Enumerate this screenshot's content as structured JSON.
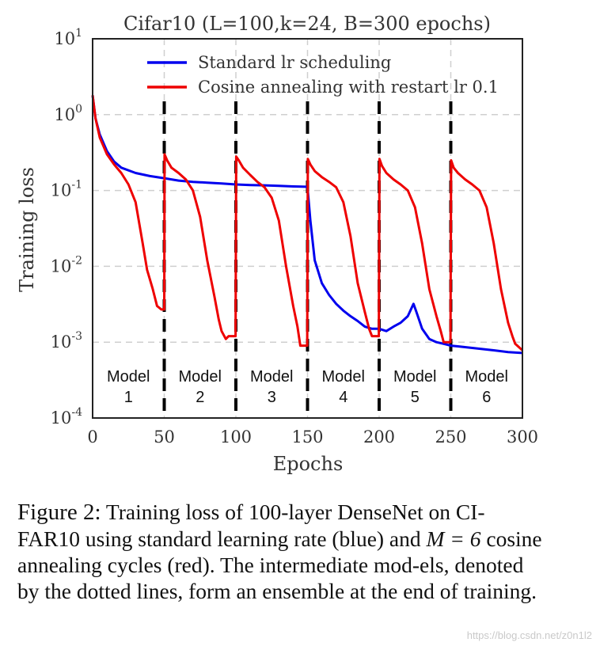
{
  "chart_data": {
    "type": "line",
    "title": "Cifar10 (L=100,k=24, B=300 epochs)",
    "xlabel": "Epochs",
    "ylabel": "Training loss",
    "xlim": [
      0,
      300
    ],
    "ylim_log10": [
      -4,
      1
    ],
    "yscale": "log",
    "x_ticks": [
      0,
      50,
      100,
      150,
      200,
      250,
      300
    ],
    "y_ticks": [
      {
        "base": "10",
        "exp": "-4"
      },
      {
        "base": "10",
        "exp": "-3"
      },
      {
        "base": "10",
        "exp": "-2"
      },
      {
        "base": "10",
        "exp": "-1"
      },
      {
        "base": "10",
        "exp": "0"
      },
      {
        "base": "10",
        "exp": "1"
      }
    ],
    "grid": true,
    "legend_position": "top",
    "series": [
      {
        "name": "Standard lr scheduling",
        "color": "#0000ee",
        "x": [
          0,
          2,
          5,
          10,
          15,
          20,
          30,
          40,
          50,
          60,
          70,
          80,
          90,
          100,
          110,
          120,
          130,
          140,
          149,
          150,
          152,
          155,
          160,
          165,
          170,
          175,
          180,
          185,
          190,
          195,
          200,
          205,
          210,
          215,
          220,
          224,
          226,
          230,
          235,
          240,
          245,
          250,
          255,
          260,
          270,
          280,
          290,
          300
        ],
        "y": [
          1.8,
          0.9,
          0.55,
          0.33,
          0.24,
          0.2,
          0.17,
          0.155,
          0.145,
          0.135,
          0.13,
          0.127,
          0.124,
          0.12,
          0.118,
          0.117,
          0.115,
          0.113,
          0.112,
          0.11,
          0.04,
          0.012,
          0.006,
          0.0042,
          0.0032,
          0.0026,
          0.0022,
          0.0019,
          0.0016,
          0.0015,
          0.0015,
          0.0014,
          0.0016,
          0.0018,
          0.0022,
          0.0032,
          0.0025,
          0.0015,
          0.0011,
          0.001,
          0.00095,
          0.0009,
          0.00088,
          0.00086,
          0.00082,
          0.00078,
          0.00074,
          0.00072
        ]
      },
      {
        "name": "Cosine annealing with restart lr 0.1",
        "color": "#ee0000",
        "x": [
          0,
          2,
          5,
          10,
          15,
          20,
          25,
          30,
          35,
          38,
          42,
          45,
          48,
          50,
          50.2,
          52,
          55,
          60,
          65,
          70,
          75,
          80,
          85,
          88,
          90,
          93,
          95,
          99.8,
          100.2,
          102,
          105,
          110,
          115,
          120,
          125,
          130,
          135,
          140,
          143,
          145,
          149.8,
          150.2,
          152,
          155,
          160,
          165,
          170,
          175,
          180,
          185,
          190,
          193,
          195,
          199.8,
          200.2,
          202,
          205,
          210,
          215,
          220,
          225,
          230,
          235,
          240,
          243,
          245,
          249.8,
          250.2,
          252,
          255,
          260,
          265,
          270,
          275,
          280,
          285,
          290,
          293,
          295,
          300
        ],
        "y": [
          1.8,
          0.9,
          0.5,
          0.3,
          0.22,
          0.17,
          0.12,
          0.07,
          0.02,
          0.009,
          0.005,
          0.003,
          0.0027,
          0.0027,
          0.3,
          0.25,
          0.2,
          0.17,
          0.14,
          0.1,
          0.045,
          0.012,
          0.004,
          0.002,
          0.0014,
          0.0011,
          0.0012,
          0.0012,
          0.28,
          0.25,
          0.2,
          0.16,
          0.13,
          0.11,
          0.08,
          0.04,
          0.01,
          0.003,
          0.0016,
          0.0009,
          0.0009,
          0.26,
          0.22,
          0.18,
          0.15,
          0.13,
          0.11,
          0.07,
          0.025,
          0.006,
          0.0025,
          0.0015,
          0.0012,
          0.0012,
          0.26,
          0.21,
          0.17,
          0.14,
          0.12,
          0.1,
          0.06,
          0.02,
          0.005,
          0.0022,
          0.0014,
          0.001,
          0.001,
          0.25,
          0.2,
          0.17,
          0.14,
          0.12,
          0.1,
          0.06,
          0.02,
          0.005,
          0.0018,
          0.0012,
          0.00095,
          0.00078
        ]
      }
    ],
    "annotations": {
      "restart_epochs": [
        50,
        100,
        150,
        200,
        250
      ],
      "models": [
        {
          "line1": "Model",
          "line2": "1",
          "x": 25
        },
        {
          "line1": "Model",
          "line2": "2",
          "x": 75
        },
        {
          "line1": "Model",
          "line2": "3",
          "x": 125
        },
        {
          "line1": "Model",
          "line2": "4",
          "x": 175
        },
        {
          "line1": "Model",
          "line2": "5",
          "x": 225
        },
        {
          "line1": "Model",
          "line2": "6",
          "x": 275
        }
      ]
    }
  },
  "caption": {
    "figure_label": "Figure 2:",
    "text_before_math": "Training loss of 100-layer DenseNet on CI-FAR10 using standard learning rate (blue) and",
    "math": "M = 6",
    "text_after_math": "cosine annealing cycles (red). The intermediate mod-els, denoted by the dotted lines, form an ensemble at the end of training."
  },
  "watermark": "https://blog.csdn.net/z0n1l2"
}
